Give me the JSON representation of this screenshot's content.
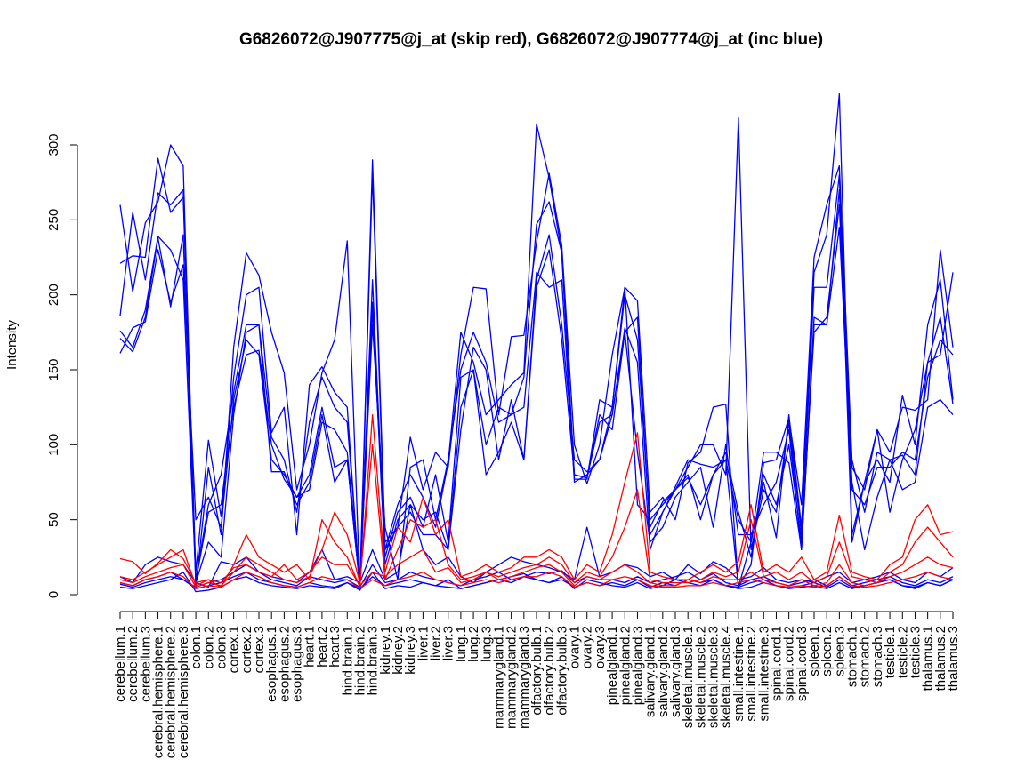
{
  "chart_data": {
    "type": "line",
    "title": "G6826072@J907775@j_at (skip red), G6826072@J907774@j_at (inc blue)",
    "xlabel": "",
    "ylabel": "Intensity",
    "ylim": [
      0,
      300
    ],
    "yticks": [
      0,
      50,
      100,
      150,
      200,
      250,
      300
    ],
    "grid": false,
    "categories": [
      "cerebellum.1",
      "cerebellum.2",
      "cerebellum.3",
      "cerebral.hemisphere.1",
      "cerebral.hemisphere.2",
      "cerebral.hemisphere.3",
      "colon.1",
      "colon.2",
      "colon.3",
      "cortex.1",
      "cortex.2",
      "cortex.3",
      "esophagus.1",
      "esophagus.2",
      "esophagus.3",
      "heart.1",
      "heart.2",
      "heart.3",
      "hind.brain.1",
      "hind.brain.2",
      "hind.brain.3",
      "kidney.1",
      "kidney.2",
      "kidney.3",
      "liver.1",
      "liver.2",
      "liver.3",
      "lung.1",
      "lung.2",
      "lung.3",
      "mammarygland.1",
      "mammarygland.2",
      "mammarygland.3",
      "olfactory.bulb.1",
      "olfactory.bulb.2",
      "olfactory.bulb.3",
      "ovary.1",
      "ovary.2",
      "ovary.3",
      "pinealgland.1",
      "pinealgland.2",
      "pinealgland.3",
      "salivary.gland.1",
      "salivary.gland.2",
      "salivary.gland.3",
      "skeletal.muscle.1",
      "skeletal.muscle.2",
      "skeletal.muscle.3",
      "skeletal.muscle.4",
      "small.intestine.1",
      "small.intestine.2",
      "small.intestine.3",
      "spinal.cord.1",
      "spinal.cord.2",
      "spinal.cord.3",
      "spleen.1",
      "spleen.2",
      "spleen.3",
      "stomach.1",
      "stomach.2",
      "stomach.3",
      "testicle.1",
      "testicle.2",
      "testicle.3",
      "thalamus.1",
      "thalamus.2",
      "thalamus.3"
    ],
    "series": [
      {
        "color": "#0000ff",
        "values": [
          260,
          202,
          248,
          262,
          300,
          286,
          5,
          85,
          40,
          165,
          228,
          213,
          175,
          148,
          70,
          100,
          148,
          170,
          236,
          5,
          290,
          35,
          45,
          105,
          70,
          95,
          85,
          160,
          205,
          204,
          120,
          172,
          173,
          235,
          281,
          233,
          100,
          74,
          100,
          160,
          205,
          196,
          55,
          65,
          50,
          88,
          95,
          125,
          127,
          5,
          35,
          75,
          38,
          120,
          45,
          215,
          240,
          334,
          40,
          75,
          110,
          95,
          125,
          123,
          130,
          230,
          165
        ]
      },
      {
        "color": "#0000ff",
        "values": [
          221,
          226,
          225,
          291,
          255,
          265,
          15,
          103,
          52,
          145,
          200,
          205,
          108,
          125,
          40,
          140,
          152,
          135,
          125,
          3,
          280,
          30,
          60,
          80,
          65,
          45,
          88,
          175,
          155,
          120,
          130,
          140,
          148,
          314,
          278,
          228,
          77,
          77,
          130,
          125,
          200,
          170,
          45,
          62,
          70,
          85,
          100,
          100,
          80,
          318,
          30,
          70,
          55,
          115,
          40,
          205,
          205,
          280,
          35,
          75,
          90,
          75,
          133,
          100,
          180,
          210,
          130
        ]
      },
      {
        "color": "#0000ff",
        "values": [
          186,
          255,
          210,
          268,
          260,
          270,
          10,
          60,
          80,
          135,
          180,
          180,
          105,
          90,
          55,
          115,
          145,
          125,
          115,
          8,
          180,
          45,
          10,
          85,
          90,
          50,
          90,
          150,
          175,
          155,
          115,
          120,
          145,
          247,
          262,
          228,
          80,
          78,
          120,
          110,
          175,
          185,
          40,
          55,
          72,
          90,
          87,
          85,
          90,
          5,
          20,
          88,
          90,
          118,
          60,
          225,
          260,
          286,
          90,
          55,
          95,
          90,
          93,
          80,
          155,
          185,
          127
        ]
      },
      {
        "color": "#0000ff",
        "values": [
          171,
          162,
          185,
          238,
          192,
          240,
          8,
          35,
          25,
          120,
          175,
          180,
          82,
          82,
          60,
          75,
          120,
          75,
          90,
          5,
          210,
          25,
          55,
          65,
          45,
          80,
          35,
          145,
          150,
          80,
          95,
          115,
          90,
          210,
          240,
          180,
          90,
          82,
          90,
          120,
          175,
          95,
          35,
          45,
          65,
          75,
          85,
          45,
          100,
          40,
          40,
          60,
          75,
          110,
          30,
          185,
          180,
          245,
          75,
          30,
          65,
          90,
          70,
          75,
          125,
          130,
          120
        ]
      },
      {
        "color": "#0000ff",
        "values": [
          161,
          178,
          182,
          230,
          195,
          220,
          50,
          65,
          45,
          130,
          170,
          160,
          90,
          80,
          65,
          70,
          115,
          110,
          95,
          10,
          195,
          20,
          50,
          60,
          50,
          55,
          30,
          125,
          150,
          100,
          125,
          120,
          125,
          215,
          205,
          210,
          75,
          80,
          90,
          125,
          205,
          60,
          50,
          60,
          70,
          80,
          50,
          80,
          90,
          50,
          35,
          95,
          95,
          88,
          30,
          180,
          180,
          270,
          85,
          70,
          110,
          55,
          90,
          110,
          155,
          160,
          215
        ]
      },
      {
        "color": "#0000ff",
        "values": [
          176,
          165,
          190,
          239,
          230,
          210,
          9,
          55,
          60,
          125,
          160,
          163,
          100,
          77,
          65,
          80,
          125,
          85,
          90,
          5,
          190,
          30,
          45,
          55,
          40,
          40,
          30,
          110,
          165,
          150,
          90,
          130,
          90,
          205,
          230,
          170,
          80,
          78,
          115,
          120,
          178,
          155,
          30,
          55,
          70,
          78,
          60,
          80,
          95,
          55,
          25,
          80,
          60,
          100,
          35,
          175,
          185,
          260,
          70,
          60,
          85,
          85,
          95,
          90,
          145,
          170,
          160
        ]
      },
      {
        "color": "#0000ff",
        "values": [
          5,
          4,
          6,
          8,
          10,
          15,
          2,
          3,
          5,
          10,
          12,
          8,
          6,
          5,
          4,
          6,
          5,
          4,
          8,
          3,
          15,
          4,
          6,
          5,
          8,
          6,
          10,
          4,
          6,
          8,
          10,
          12,
          14,
          10,
          8,
          12,
          4,
          10,
          8,
          6,
          5,
          8,
          4,
          6,
          10,
          8,
          6,
          10,
          6,
          4,
          5,
          8,
          6,
          4,
          5,
          6,
          4,
          8,
          4,
          6,
          8,
          10,
          6,
          4,
          8,
          6,
          10
        ]
      },
      {
        "color": "#0000ff",
        "values": [
          7,
          5,
          8,
          10,
          12,
          10,
          5,
          8,
          10,
          15,
          20,
          15,
          10,
          8,
          6,
          12,
          10,
          8,
          10,
          5,
          20,
          8,
          10,
          15,
          12,
          10,
          8,
          6,
          10,
          12,
          15,
          10,
          12,
          15,
          14,
          16,
          8,
          12,
          10,
          10,
          8,
          12,
          8,
          10,
          12,
          15,
          10,
          14,
          8,
          6,
          10,
          12,
          8,
          6,
          8,
          10,
          6,
          12,
          6,
          8,
          10,
          12,
          8,
          6,
          10,
          8,
          12
        ]
      },
      {
        "color": "#0000ff",
        "values": [
          12,
          8,
          20,
          25,
          22,
          20,
          8,
          5,
          22,
          20,
          25,
          15,
          12,
          10,
          8,
          15,
          30,
          10,
          12,
          8,
          30,
          10,
          15,
          60,
          30,
          20,
          25,
          12,
          8,
          15,
          20,
          25,
          22,
          20,
          18,
          15,
          10,
          45,
          12,
          15,
          20,
          18,
          12,
          15,
          10,
          20,
          14,
          22,
          18,
          10,
          12,
          18,
          10,
          8,
          10,
          8,
          12,
          15,
          8,
          10,
          12,
          15,
          10,
          8,
          15,
          12,
          18
        ]
      },
      {
        "color": "#0000ff",
        "values": [
          8,
          6,
          10,
          12,
          15,
          10,
          4,
          6,
          8,
          12,
          15,
          10,
          8,
          6,
          5,
          8,
          6,
          5,
          8,
          4,
          12,
          6,
          8,
          10,
          8,
          6,
          5,
          4,
          6,
          8,
          10,
          8,
          12,
          10,
          8,
          10,
          5,
          8,
          6,
          8,
          6,
          10,
          5,
          8,
          6,
          10,
          8,
          10,
          6,
          5,
          8,
          10,
          6,
          5,
          6,
          8,
          5,
          10,
          5,
          6,
          8,
          10,
          6,
          5,
          8,
          6,
          10
        ]
      },
      {
        "color": "#ff0000",
        "values": [
          24,
          22,
          14,
          21,
          30,
          24,
          8,
          10,
          5,
          20,
          40,
          25,
          20,
          15,
          20,
          10,
          50,
          35,
          25,
          5,
          120,
          15,
          45,
          35,
          65,
          40,
          50,
          12,
          15,
          20,
          15,
          18,
          25,
          25,
          30,
          25,
          10,
          20,
          15,
          40,
          75,
          108,
          15,
          12,
          10,
          10,
          15,
          20,
          15,
          22,
          60,
          15,
          20,
          15,
          25,
          10,
          15,
          53,
          15,
          12,
          10,
          20,
          25,
          50,
          60,
          40,
          42
        ]
      },
      {
        "color": "#ff0000",
        "values": [
          10,
          8,
          12,
          15,
          18,
          20,
          5,
          8,
          6,
          15,
          25,
          20,
          15,
          10,
          8,
          12,
          30,
          55,
          40,
          8,
          100,
          10,
          30,
          50,
          45,
          50,
          20,
          10,
          12,
          15,
          12,
          15,
          18,
          20,
          25,
          20,
          8,
          15,
          12,
          25,
          45,
          70,
          10,
          8,
          8,
          8,
          10,
          15,
          12,
          15,
          50,
          12,
          15,
          10,
          15,
          8,
          12,
          35,
          12,
          10,
          8,
          15,
          20,
          35,
          45,
          35,
          25
        ]
      },
      {
        "color": "#ff0000",
        "values": [
          12,
          10,
          15,
          20,
          25,
          30,
          6,
          10,
          8,
          18,
          20,
          15,
          12,
          20,
          10,
          15,
          25,
          20,
          20,
          6,
          15,
          12,
          20,
          25,
          30,
          15,
          18,
          8,
          10,
          15,
          10,
          12,
          15,
          18,
          20,
          15,
          6,
          12,
          10,
          15,
          20,
          15,
          8,
          6,
          6,
          10,
          8,
          12,
          10,
          10,
          15,
          10,
          8,
          6,
          10,
          6,
          8,
          20,
          8,
          6,
          8,
          12,
          15,
          20,
          25,
          20,
          18
        ]
      },
      {
        "color": "#ff0000",
        "values": [
          8,
          6,
          10,
          12,
          15,
          12,
          4,
          6,
          5,
          10,
          15,
          12,
          8,
          6,
          5,
          8,
          12,
          10,
          10,
          4,
          10,
          6,
          10,
          12,
          15,
          10,
          8,
          6,
          8,
          10,
          8,
          10,
          12,
          12,
          15,
          12,
          5,
          8,
          6,
          10,
          12,
          10,
          6,
          5,
          5,
          6,
          6,
          8,
          6,
          8,
          10,
          8,
          6,
          5,
          6,
          5,
          6,
          12,
          6,
          5,
          6,
          8,
          10,
          12,
          15,
          12,
          10
        ]
      }
    ]
  }
}
